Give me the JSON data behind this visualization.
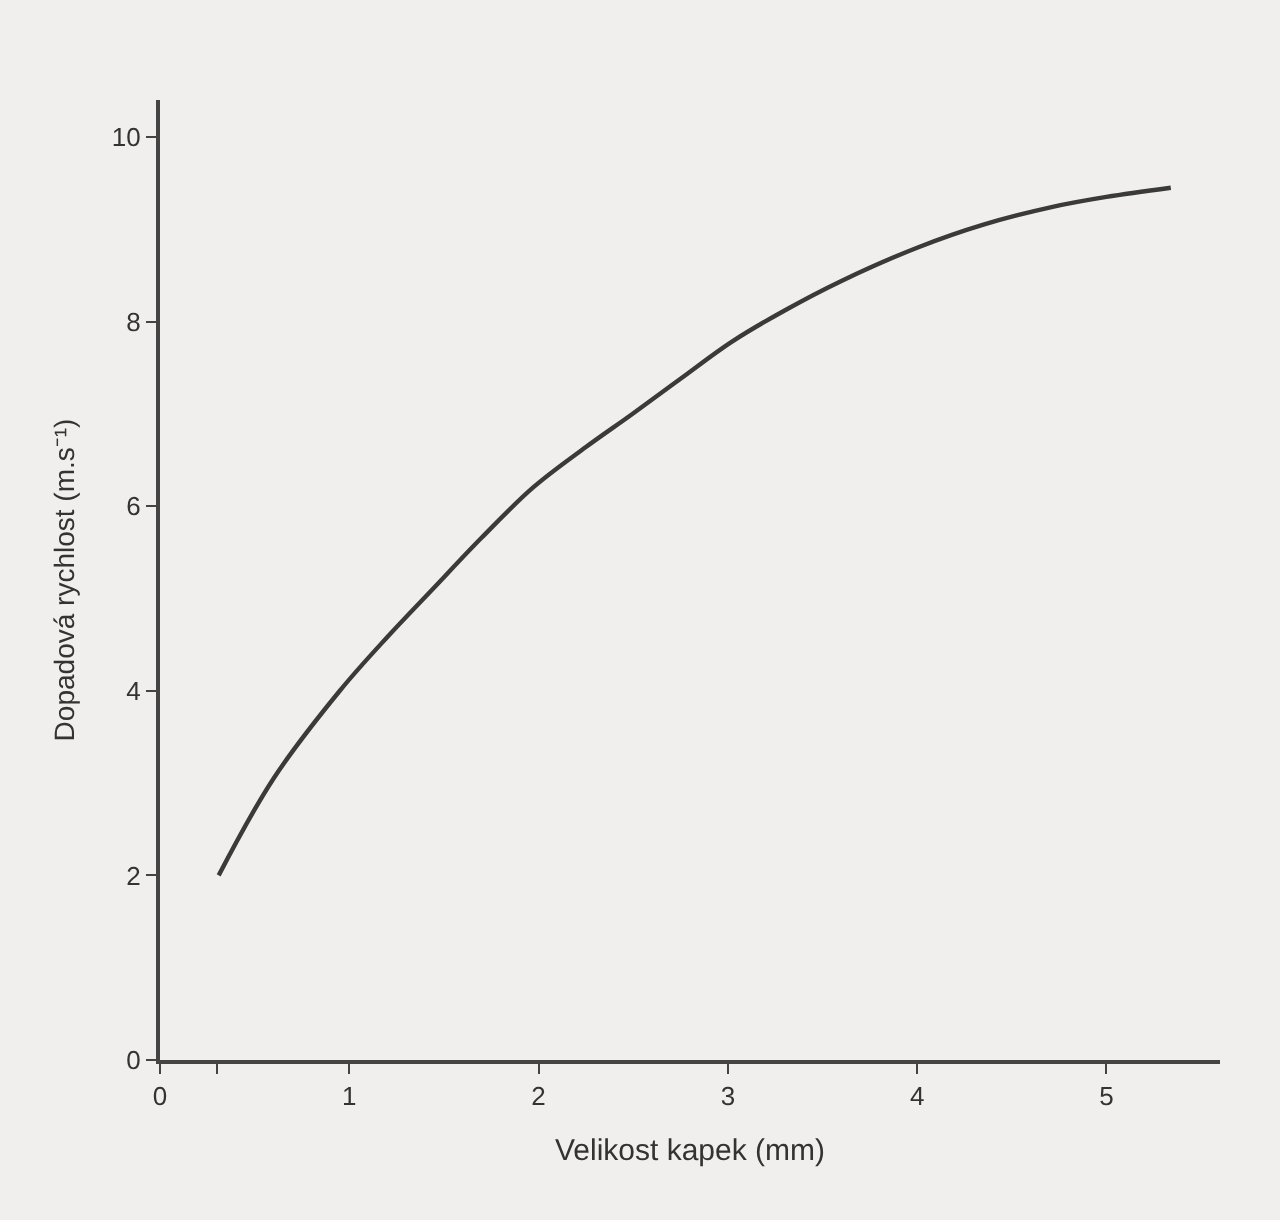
{
  "chart_data": {
    "type": "line",
    "xlabel": "Velikost kapek (mm)",
    "ylabel": "Dopadová rychlost (m.s⁻¹)",
    "x": [
      0.31,
      0.6,
      0.95,
      1.2,
      1.44,
      1.7,
      1.97,
      2.25,
      2.49,
      2.75,
      3.02,
      3.3,
      3.6,
      4.0,
      4.35,
      4.71,
      5.0,
      5.34
    ],
    "series": [
      {
        "color": "#3a3a3a",
        "values": [
          2.0,
          3.05,
          4.0,
          4.58,
          5.1,
          5.66,
          6.2,
          6.64,
          6.99,
          7.38,
          7.78,
          8.12,
          8.44,
          8.8,
          9.05,
          9.24,
          9.35,
          9.45
        ]
      }
    ],
    "xlim": [
      0,
      5.6
    ],
    "ylim": [
      0,
      10.4
    ],
    "xticks": [
      0,
      {
        "value": 0.3,
        "label": null
      },
      1,
      2,
      3,
      4,
      5
    ],
    "yticks": [
      0,
      2,
      4,
      6,
      8,
      10
    ],
    "grid": false,
    "marker": "none",
    "line_style": "solid"
  }
}
